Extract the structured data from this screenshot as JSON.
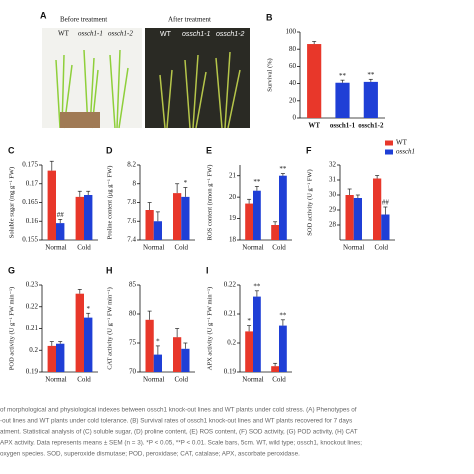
{
  "photo": {
    "panel": "A",
    "left_title": "Before treatment",
    "right_title": "After treatment",
    "left_labels": [
      "WT",
      "ossch1-1",
      "ossch1-2"
    ],
    "right_labels": [
      "WT",
      "ossch1-1",
      "ossch1-2"
    ]
  },
  "caption": [
    "of morphological and physiological indexes between ossch1 knock-out lines and WT plants under cold stress. (A) Phenotypes of",
    "-out lines and WT plants under cold tolerance. (B) Survival rates of ossch1 knock-out lines and WT plants recovered for 7 days",
    "atment. Statistical analysis of (C) soluble sugar, (D) proline content, (E) ROS content, (F) SOD activity, (G) POD activity, (H) CAT",
    "APX activity. Data represents means ± SEM (n = 3). *P < 0.05, **P < 0.01. Scale bars, 5cm. WT, wild type; ossch1, knockout lines;",
    "oxygen species. SOD, superoxide dismutase; POD, peroxidase; CAT, catalase; APX, ascorbate peroxidase."
  ],
  "chart_data": [
    {
      "type": "bar",
      "panel": "B",
      "y_label": "Survival (%)",
      "categories": [
        "WT",
        "ossch1-1",
        "ossch1-2"
      ],
      "values": [
        86,
        41,
        42
      ],
      "errors": [
        3,
        3,
        3
      ],
      "significance": [
        null,
        "**",
        "**"
      ],
      "colors": [
        "#e8372a",
        "#1f3fd6",
        "#1f3fd6"
      ],
      "ylim": [
        0,
        100
      ],
      "yticks": [
        0,
        20,
        40,
        60,
        80,
        100
      ]
    },
    {
      "type": "grouped-bar",
      "panel": "C",
      "y_label": "Soluble sugar (mg g⁻¹ FW)",
      "categories": [
        "Normal",
        "Cold"
      ],
      "ylim": [
        0.155,
        0.175
      ],
      "yticks": [
        0.155,
        0.16,
        0.165,
        0.17,
        0.175
      ],
      "series": [
        {
          "name": "WT",
          "color": "#e8372a",
          "values": [
            0.1735,
            0.1665
          ],
          "errors": [
            0.0025,
            0.0015
          ],
          "significance": [
            null,
            null
          ]
        },
        {
          "name": "ossch1",
          "color": "#1f3fd6",
          "values": [
            0.1595,
            0.167
          ],
          "errors": [
            0.001,
            0.001
          ],
          "significance": [
            "##",
            null
          ]
        }
      ]
    },
    {
      "type": "grouped-bar",
      "panel": "D",
      "y_label": "Proline content (μg g⁻¹ FW)",
      "categories": [
        "Normal",
        "Cold"
      ],
      "ylim": [
        7.4,
        8.2
      ],
      "yticks": [
        7.4,
        7.6,
        7.8,
        8,
        8.2
      ],
      "series": [
        {
          "name": "WT",
          "color": "#e8372a",
          "values": [
            7.72,
            7.9
          ],
          "errors": [
            0.08,
            0.1
          ],
          "significance": [
            null,
            null
          ]
        },
        {
          "name": "ossch1",
          "color": "#1f3fd6",
          "values": [
            7.6,
            7.86
          ],
          "errors": [
            0.1,
            0.1
          ],
          "significance": [
            null,
            "*"
          ]
        }
      ]
    },
    {
      "type": "grouped-bar",
      "panel": "E",
      "y_label": "ROS content (nmon g⁻¹ FW)",
      "categories": [
        "Normal",
        "Cold"
      ],
      "ylim": [
        18,
        21.5
      ],
      "yticks": [
        18,
        19,
        20,
        21
      ],
      "series": [
        {
          "name": "WT",
          "color": "#e8372a",
          "values": [
            19.7,
            18.7
          ],
          "errors": [
            0.2,
            0.15
          ],
          "significance": [
            null,
            null
          ]
        },
        {
          "name": "ossch1",
          "color": "#1f3fd6",
          "values": [
            20.3,
            21
          ],
          "errors": [
            0.2,
            0.1
          ],
          "significance": [
            "**",
            "**"
          ]
        }
      ]
    },
    {
      "type": "grouped-bar",
      "panel": "F",
      "y_label": "SOD activity (U g⁻¹ FW)",
      "categories": [
        "Normal",
        "Cold"
      ],
      "ylim": [
        27,
        32
      ],
      "yticks": [
        28,
        29,
        30,
        31,
        32
      ],
      "legend": "upper right",
      "series": [
        {
          "name": "WT",
          "color": "#e8372a",
          "values": [
            30,
            31.1
          ],
          "errors": [
            0.4,
            0.2
          ],
          "significance": [
            null,
            null
          ]
        },
        {
          "name": "ossch1",
          "color": "#1f3fd6",
          "values": [
            29.8,
            28.7
          ],
          "errors": [
            0.2,
            0.5
          ],
          "significance": [
            null,
            "##"
          ]
        }
      ]
    },
    {
      "type": "grouped-bar",
      "panel": "G",
      "y_label": "POD activity (U g⁻¹ FW min⁻¹)",
      "categories": [
        "Normal",
        "Cold"
      ],
      "ylim": [
        0.19,
        0.23
      ],
      "yticks": [
        0.19,
        0.2,
        0.21,
        0.22,
        0.23
      ],
      "series": [
        {
          "name": "WT",
          "color": "#e8372a",
          "values": [
            0.202,
            0.226
          ],
          "errors": [
            0.002,
            0.002
          ],
          "significance": [
            null,
            null
          ]
        },
        {
          "name": "ossch1",
          "color": "#1f3fd6",
          "values": [
            0.203,
            0.215
          ],
          "errors": [
            0.001,
            0.002
          ],
          "significance": [
            null,
            "*"
          ]
        }
      ]
    },
    {
      "type": "grouped-bar",
      "panel": "H",
      "y_label": "CAT activity (U g⁻¹ FW min⁻¹)",
      "categories": [
        "Normal",
        "Cold"
      ],
      "ylim": [
        70,
        85
      ],
      "yticks": [
        70,
        75,
        80,
        85
      ],
      "series": [
        {
          "name": "WT",
          "color": "#e8372a",
          "values": [
            79,
            76
          ],
          "errors": [
            1.5,
            1.5
          ],
          "significance": [
            null,
            null
          ]
        },
        {
          "name": "ossch1",
          "color": "#1f3fd6",
          "values": [
            73,
            74
          ],
          "errors": [
            1.5,
            1
          ],
          "significance": [
            "*",
            null
          ]
        }
      ]
    },
    {
      "type": "grouped-bar",
      "panel": "I",
      "y_label": "APX activity (U g⁻¹ FW min⁻¹)",
      "categories": [
        "Normal",
        "Cold"
      ],
      "ylim": [
        0.19,
        0.22
      ],
      "yticks": [
        0.19,
        0.2,
        0.21,
        0.22
      ],
      "series": [
        {
          "name": "WT",
          "color": "#e8372a",
          "values": [
            0.204,
            0.192
          ],
          "errors": [
            0.002,
            0.001
          ],
          "significance": [
            "*",
            null
          ]
        },
        {
          "name": "ossch1",
          "color": "#1f3fd6",
          "values": [
            0.216,
            0.206
          ],
          "errors": [
            0.002,
            0.002
          ],
          "significance": [
            "**",
            "**"
          ]
        }
      ]
    }
  ]
}
